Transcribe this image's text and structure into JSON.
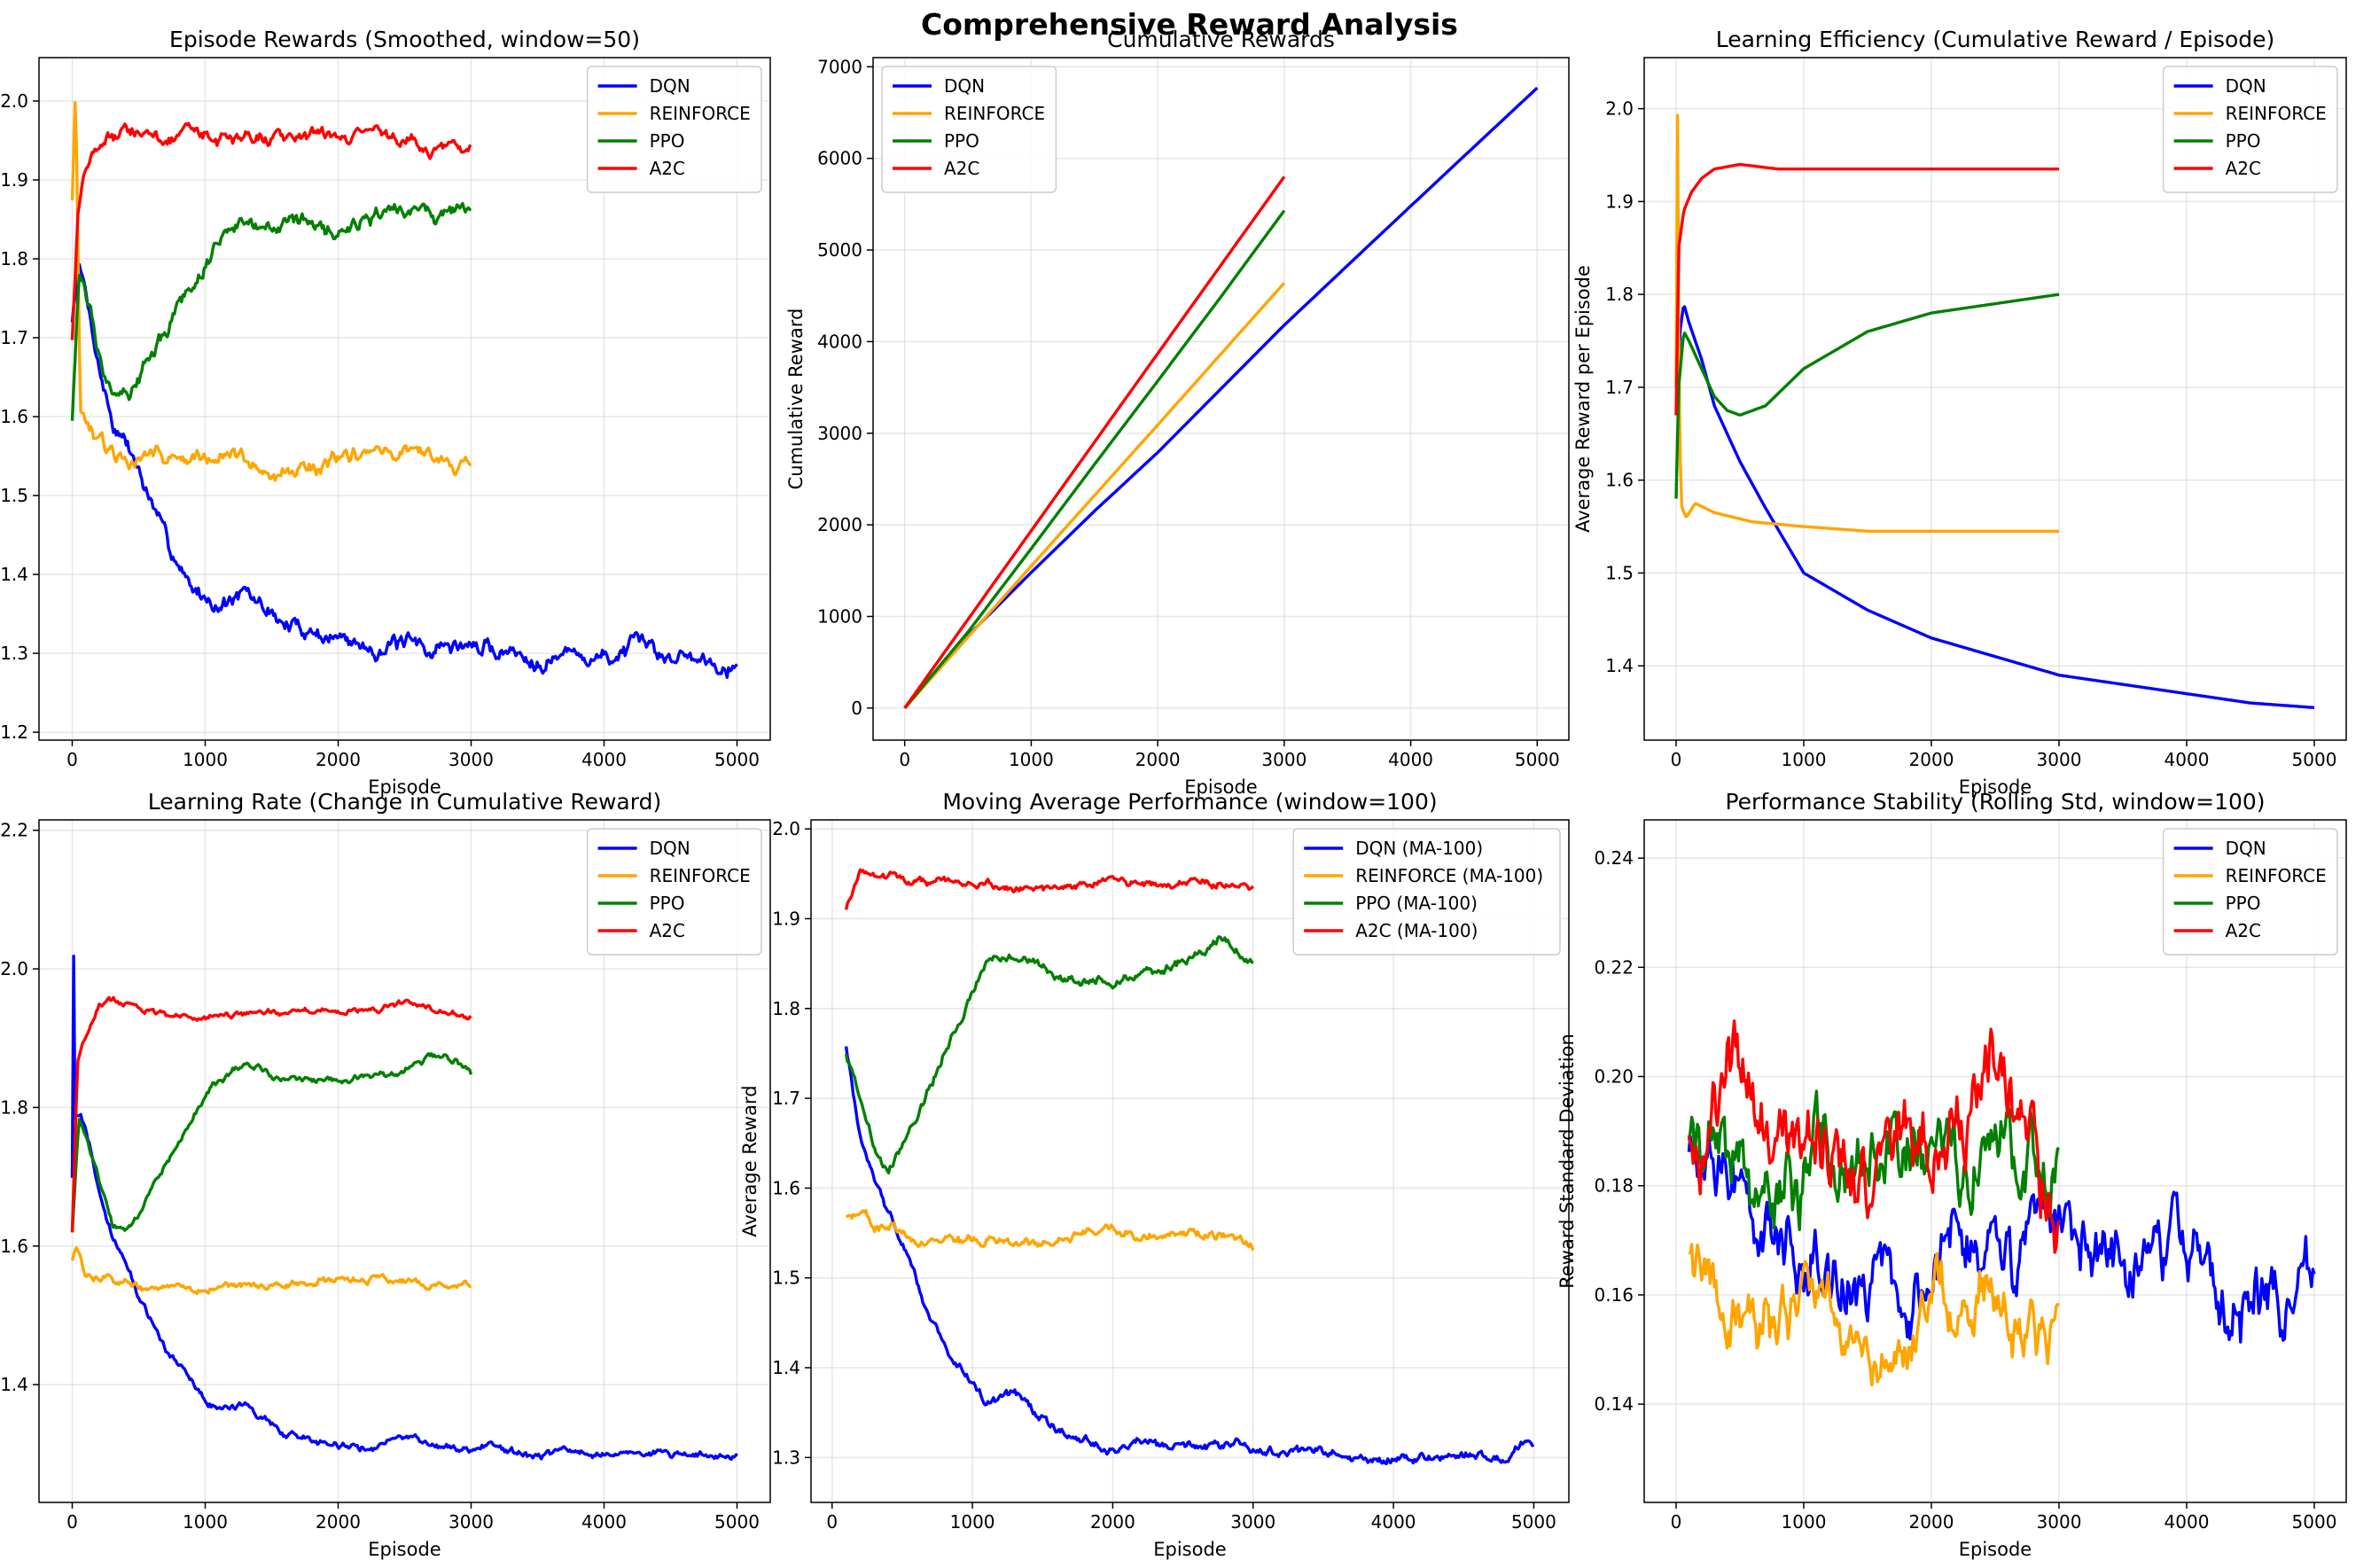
{
  "suptitle": "Comprehensive Reward Analysis",
  "colors": {
    "DQN": "#0000ff",
    "REINFORCE": "#ffa500",
    "PPO": "#008000",
    "A2C": "#ff0000"
  },
  "chart_data": [
    {
      "type": "line",
      "title": "Episode Rewards (Smoothed, window=50)",
      "xlabel": "Episode",
      "ylabel": "Reward per Episode",
      "xlim": [
        -250,
        5250
      ],
      "ylim": [
        1.19,
        2.055
      ],
      "xticks": [
        0,
        1000,
        2000,
        3000,
        4000,
        5000
      ],
      "yticks": [
        1.2,
        1.3,
        1.4,
        1.5,
        1.6,
        1.7,
        1.8,
        1.9,
        2.0
      ],
      "ytick_decimals": 1,
      "grid": true,
      "legend": "top-right",
      "series": [
        {
          "name": "DQN",
          "noise": 0.025,
          "x": [
            0,
            50,
            100,
            200,
            300,
            400,
            500,
            700,
            900,
            1100,
            1300,
            1600,
            2000,
            2500,
            3000,
            3500,
            4000,
            4500,
            5000
          ],
          "y": [
            1.72,
            1.79,
            1.75,
            1.66,
            1.59,
            1.56,
            1.53,
            1.44,
            1.39,
            1.36,
            1.37,
            1.34,
            1.32,
            1.31,
            1.31,
            1.3,
            1.3,
            1.3,
            1.29
          ]
        },
        {
          "name": "REINFORCE",
          "noise": 0.022,
          "x": [
            0,
            25,
            60,
            150,
            300,
            600,
            1000,
            1500,
            2000,
            2500,
            3000
          ],
          "y": [
            1.88,
            2.02,
            1.6,
            1.57,
            1.55,
            1.55,
            1.55,
            1.53,
            1.55,
            1.55,
            1.55
          ]
        },
        {
          "name": "PPO",
          "noise": 0.025,
          "x": [
            0,
            50,
            100,
            200,
            300,
            400,
            500,
            700,
            900,
            1100,
            1300,
            1600,
            2000,
            2500,
            2800,
            3000
          ],
          "y": [
            1.6,
            1.78,
            1.75,
            1.68,
            1.65,
            1.64,
            1.65,
            1.71,
            1.77,
            1.82,
            1.85,
            1.85,
            1.83,
            1.85,
            1.87,
            1.86
          ]
        },
        {
          "name": "A2C",
          "noise": 0.02,
          "x": [
            0,
            40,
            100,
            200,
            400,
            700,
            1000,
            1500,
            2000,
            2500,
            3000
          ],
          "y": [
            1.7,
            1.86,
            1.92,
            1.95,
            1.96,
            1.95,
            1.95,
            1.95,
            1.95,
            1.95,
            1.94
          ]
        }
      ]
    },
    {
      "type": "line",
      "title": "Cumulative Rewards",
      "xlabel": "Episode",
      "ylabel": "Cumulative Reward",
      "xlim": [
        -250,
        5250
      ],
      "ylim": [
        -350,
        7100
      ],
      "xticks": [
        0,
        1000,
        2000,
        3000,
        4000,
        5000
      ],
      "yticks": [
        0,
        1000,
        2000,
        3000,
        4000,
        5000,
        6000,
        7000
      ],
      "ytick_decimals": 0,
      "grid": true,
      "legend": "top-left",
      "series": [
        {
          "name": "DQN",
          "noise": 0,
          "x": [
            0,
            500,
            1000,
            1500,
            2000,
            3000,
            4000,
            5000
          ],
          "y": [
            0,
            790,
            1480,
            2150,
            2790,
            4180,
            5480,
            6770
          ]
        },
        {
          "name": "REINFORCE",
          "noise": 0,
          "x": [
            0,
            1000,
            2000,
            3000
          ],
          "y": [
            0,
            1550,
            3090,
            4640
          ]
        },
        {
          "name": "PPO",
          "noise": 0,
          "x": [
            0,
            500,
            1000,
            1500,
            2000,
            2500,
            3000
          ],
          "y": [
            0,
            830,
            1740,
            2660,
            3570,
            4490,
            5430
          ]
        },
        {
          "name": "A2C",
          "noise": 0,
          "x": [
            0,
            1000,
            2000,
            3000
          ],
          "y": [
            0,
            1935,
            3870,
            5800
          ]
        }
      ]
    },
    {
      "type": "line",
      "title": "Learning Efficiency (Cumulative Reward / Episode)",
      "xlabel": "Episode",
      "ylabel": "Average Reward per Episode",
      "xlim": [
        -250,
        5250
      ],
      "ylim": [
        1.32,
        2.055
      ],
      "xticks": [
        0,
        1000,
        2000,
        3000,
        4000,
        5000
      ],
      "yticks": [
        1.4,
        1.5,
        1.6,
        1.7,
        1.8,
        1.9,
        2.0
      ],
      "ytick_decimals": 1,
      "grid": true,
      "legend": "top-right",
      "series": [
        {
          "name": "DQN",
          "noise": 0,
          "x": [
            0,
            30,
            60,
            100,
            200,
            300,
            500,
            700,
            1000,
            1500,
            2000,
            2500,
            3000,
            3500,
            4000,
            4500,
            5000
          ],
          "y": [
            1.67,
            1.76,
            1.79,
            1.77,
            1.73,
            1.68,
            1.62,
            1.57,
            1.5,
            1.46,
            1.43,
            1.41,
            1.39,
            1.38,
            1.37,
            1.36,
            1.355
          ]
        },
        {
          "name": "REINFORCE",
          "noise": 0,
          "x": [
            0,
            10,
            25,
            45,
            80,
            150,
            300,
            600,
            1000,
            1500,
            2000,
            2500,
            3000
          ],
          "y": [
            1.7,
            2.02,
            1.65,
            1.57,
            1.56,
            1.575,
            1.565,
            1.555,
            1.55,
            1.545,
            1.545,
            1.545,
            1.545
          ]
        },
        {
          "name": "PPO",
          "noise": 0,
          "x": [
            0,
            20,
            60,
            100,
            200,
            300,
            400,
            500,
            700,
            1000,
            1500,
            2000,
            2500,
            3000
          ],
          "y": [
            1.58,
            1.7,
            1.76,
            1.75,
            1.72,
            1.69,
            1.675,
            1.67,
            1.68,
            1.72,
            1.76,
            1.78,
            1.79,
            1.8
          ]
        },
        {
          "name": "A2C",
          "noise": 0,
          "x": [
            0,
            20,
            60,
            120,
            200,
            300,
            500,
            800,
            1200,
            2000,
            3000
          ],
          "y": [
            1.67,
            1.85,
            1.89,
            1.91,
            1.925,
            1.935,
            1.94,
            1.935,
            1.935,
            1.935,
            1.935
          ]
        }
      ]
    },
    {
      "type": "line",
      "title": "Learning Rate (Change in Cumulative Reward)",
      "xlabel": "Episode",
      "ylabel": "Reward Improvement per Episode",
      "xlim": [
        -250,
        5250
      ],
      "ylim": [
        1.23,
        2.215
      ],
      "xticks": [
        0,
        1000,
        2000,
        3000,
        4000,
        5000
      ],
      "yticks": [
        1.4,
        1.6,
        1.8,
        2.0,
        2.2
      ],
      "ytick_decimals": 1,
      "grid": true,
      "legend": "top-right",
      "series": [
        {
          "name": "DQN",
          "noise": 0.012,
          "x": [
            0,
            5,
            20,
            60,
            100,
            200,
            300,
            400,
            500,
            700,
            900,
            1100,
            1300,
            1600,
            2000,
            2500,
            3000,
            3500,
            4000,
            4500,
            5000
          ],
          "y": [
            1.7,
            2.16,
            1.78,
            1.79,
            1.77,
            1.68,
            1.62,
            1.58,
            1.53,
            1.45,
            1.4,
            1.36,
            1.37,
            1.33,
            1.31,
            1.32,
            1.31,
            1.3,
            1.3,
            1.3,
            1.3
          ]
        },
        {
          "name": "REINFORCE",
          "noise": 0.012,
          "x": [
            0,
            30,
            100,
            300,
            600,
            1000,
            1500,
            2000,
            2500,
            3000
          ],
          "y": [
            1.58,
            1.6,
            1.56,
            1.55,
            1.54,
            1.54,
            1.54,
            1.55,
            1.55,
            1.54
          ]
        },
        {
          "name": "PPO",
          "noise": 0.012,
          "x": [
            0,
            50,
            100,
            200,
            300,
            400,
            500,
            700,
            900,
            1100,
            1300,
            1600,
            2000,
            2500,
            2800,
            3000
          ],
          "y": [
            1.62,
            1.78,
            1.76,
            1.7,
            1.63,
            1.62,
            1.65,
            1.72,
            1.79,
            1.84,
            1.86,
            1.84,
            1.84,
            1.85,
            1.88,
            1.85
          ]
        },
        {
          "name": "A2C",
          "noise": 0.01,
          "x": [
            0,
            40,
            100,
            200,
            400,
            700,
            1000,
            1500,
            2000,
            2500,
            3000
          ],
          "y": [
            1.62,
            1.86,
            1.9,
            1.95,
            1.95,
            1.93,
            1.93,
            1.94,
            1.94,
            1.95,
            1.93
          ]
        }
      ]
    },
    {
      "type": "line",
      "title": "Moving Average Performance (window=100)",
      "xlabel": "Episode",
      "ylabel": "Average Reward",
      "xlim": [
        -150,
        5250
      ],
      "ylim": [
        1.25,
        2.01
      ],
      "xticks": [
        0,
        1000,
        2000,
        3000,
        4000,
        5000
      ],
      "yticks": [
        1.3,
        1.4,
        1.5,
        1.6,
        1.7,
        1.8,
        1.9,
        2.0
      ],
      "ytick_decimals": 1,
      "grid": true,
      "legend": "top-right",
      "series": [
        {
          "name": "DQN (MA-100)",
          "noise": 0.012,
          "x": [
            100,
            200,
            300,
            400,
            500,
            700,
            900,
            1100,
            1300,
            1600,
            2000,
            2500,
            3000,
            3500,
            4000,
            4500,
            5000
          ],
          "y": [
            1.76,
            1.66,
            1.6,
            1.57,
            1.54,
            1.45,
            1.4,
            1.36,
            1.37,
            1.33,
            1.31,
            1.32,
            1.31,
            1.3,
            1.3,
            1.3,
            1.31
          ]
        },
        {
          "name": "REINFORCE (MA-100)",
          "noise": 0.012,
          "x": [
            100,
            200,
            300,
            600,
            1000,
            1500,
            2000,
            2500,
            3000
          ],
          "y": [
            1.57,
            1.58,
            1.56,
            1.54,
            1.54,
            1.54,
            1.55,
            1.55,
            1.54
          ]
        },
        {
          "name": "PPO (MA-100)",
          "noise": 0.012,
          "x": [
            100,
            200,
            300,
            400,
            500,
            700,
            900,
            1100,
            1300,
            1600,
            2000,
            2500,
            2800,
            3000
          ],
          "y": [
            1.75,
            1.7,
            1.65,
            1.62,
            1.65,
            1.72,
            1.79,
            1.85,
            1.86,
            1.84,
            1.83,
            1.85,
            1.88,
            1.85
          ]
        },
        {
          "name": "A2C (MA-100)",
          "noise": 0.01,
          "x": [
            100,
            200,
            400,
            700,
            1000,
            1500,
            2000,
            2500,
            3000
          ],
          "y": [
            1.91,
            1.95,
            1.95,
            1.94,
            1.94,
            1.93,
            1.94,
            1.94,
            1.94
          ]
        }
      ]
    },
    {
      "type": "line",
      "title": "Performance Stability (Rolling Std, window=100)",
      "xlabel": "Episode",
      "ylabel": "Reward Standard Deviation",
      "xlim": [
        -250,
        5250
      ],
      "ylim": [
        0.122,
        0.247
      ],
      "xticks": [
        0,
        1000,
        2000,
        3000,
        4000,
        5000
      ],
      "yticks": [
        0.14,
        0.16,
        0.18,
        0.2,
        0.22,
        0.24
      ],
      "ytick_decimals": 2,
      "grid": true,
      "legend": "top-right",
      "series": [
        {
          "name": "DQN",
          "noise": 0.014,
          "x": [
            100,
            500,
            1000,
            1500,
            2000,
            2500,
            3000,
            3500,
            4000,
            4500,
            5000
          ],
          "y": [
            0.185,
            0.175,
            0.165,
            0.16,
            0.165,
            0.17,
            0.175,
            0.17,
            0.165,
            0.155,
            0.17
          ]
        },
        {
          "name": "REINFORCE",
          "noise": 0.013,
          "x": [
            100,
            500,
            1000,
            1500,
            2000,
            2500,
            3000
          ],
          "y": [
            0.17,
            0.15,
            0.16,
            0.15,
            0.16,
            0.16,
            0.15
          ]
        },
        {
          "name": "PPO",
          "noise": 0.016,
          "x": [
            100,
            500,
            1000,
            1500,
            2000,
            2500,
            3000
          ],
          "y": [
            0.19,
            0.175,
            0.18,
            0.185,
            0.18,
            0.19,
            0.18
          ]
        },
        {
          "name": "A2C",
          "noise": 0.016,
          "x": [
            100,
            500,
            1000,
            1500,
            2000,
            2500,
            3000
          ],
          "y": [
            0.19,
            0.2,
            0.19,
            0.185,
            0.19,
            0.2,
            0.175
          ]
        }
      ]
    }
  ]
}
